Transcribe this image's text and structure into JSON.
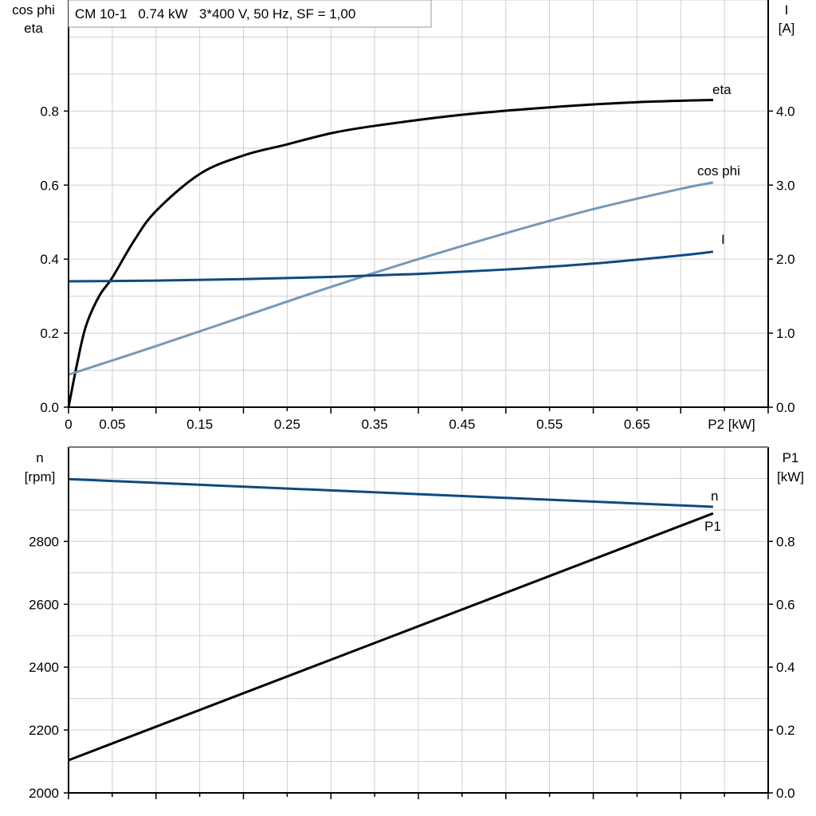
{
  "title_box": "CM 10-1   0.74 kW   3*400 V, 50 Hz, SF = 1,00",
  "colors": {
    "eta": "#000000",
    "cos_phi": "#7599b8",
    "I": "#0e4a80",
    "n": "#0e4a80",
    "P1": "#000000",
    "grid": "#d0d0d0"
  },
  "chart_data": [
    {
      "type": "line",
      "title": "CM 10-1   0.74 kW   3*400 V, 50 Hz, SF = 1,00",
      "xlabel": "P2 [kW]",
      "ylabel_left": [
        "cos phi",
        "eta"
      ],
      "ylabel_right": [
        "I",
        "[A]"
      ],
      "xlim": [
        0,
        0.8
      ],
      "ylim_left": [
        0,
        1.1
      ],
      "ylim_right": [
        0,
        5.5
      ],
      "grid": true,
      "x_tick_labels": [
        "0",
        "0.05",
        "0.15",
        "0.25",
        "0.35",
        "0.45",
        "0.55",
        "0.65"
      ],
      "x_tick_values": [
        0,
        0.05,
        0.15,
        0.25,
        0.35,
        0.45,
        0.55,
        0.65
      ],
      "y_left_ticks": [
        "0.0",
        "0.2",
        "0.4",
        "0.6",
        "0.8"
      ],
      "y_right_ticks": [
        "0.0",
        "1.0",
        "2.0",
        "3.0",
        "4.0"
      ],
      "series": [
        {
          "name": "eta",
          "axis": "left",
          "x": [
            0,
            0.01,
            0.02,
            0.035,
            0.05,
            0.075,
            0.1,
            0.15,
            0.2,
            0.25,
            0.3,
            0.35,
            0.45,
            0.55,
            0.65,
            0.737
          ],
          "y": [
            0,
            0.12,
            0.22,
            0.3,
            0.35,
            0.45,
            0.53,
            0.63,
            0.68,
            0.71,
            0.74,
            0.76,
            0.79,
            0.81,
            0.824,
            0.83
          ]
        },
        {
          "name": "cos phi",
          "axis": "left",
          "x": [
            0,
            0.1,
            0.2,
            0.3,
            0.4,
            0.5,
            0.6,
            0.7,
            0.737
          ],
          "y": [
            0.088,
            0.165,
            0.245,
            0.325,
            0.4,
            0.47,
            0.535,
            0.59,
            0.607
          ]
        },
        {
          "name": "I",
          "axis": "right",
          "x": [
            0,
            0.1,
            0.2,
            0.3,
            0.4,
            0.5,
            0.6,
            0.7,
            0.737
          ],
          "y": [
            1.7,
            1.71,
            1.73,
            1.76,
            1.8,
            1.86,
            1.94,
            2.05,
            2.1
          ]
        }
      ]
    },
    {
      "type": "line",
      "xlim": [
        0,
        0.8
      ],
      "ylabel_left": [
        "n",
        "[rpm]"
      ],
      "ylabel_right": [
        "P1",
        "[kW]"
      ],
      "ylim_left": [
        2000,
        3100
      ],
      "ylim_right": [
        0,
        1.1
      ],
      "grid": true,
      "y_left_ticks": [
        "2000",
        "2200",
        "2400",
        "2600",
        "2800"
      ],
      "y_right_ticks": [
        "0.0",
        "0.2",
        "0.4",
        "0.6",
        "0.8"
      ],
      "series": [
        {
          "name": "n",
          "axis": "left",
          "x": [
            0,
            0.737
          ],
          "y": [
            2998,
            2910
          ]
        },
        {
          "name": "P1",
          "axis": "right",
          "x": [
            0,
            0.737
          ],
          "y": [
            0.104,
            0.889
          ]
        }
      ]
    }
  ]
}
